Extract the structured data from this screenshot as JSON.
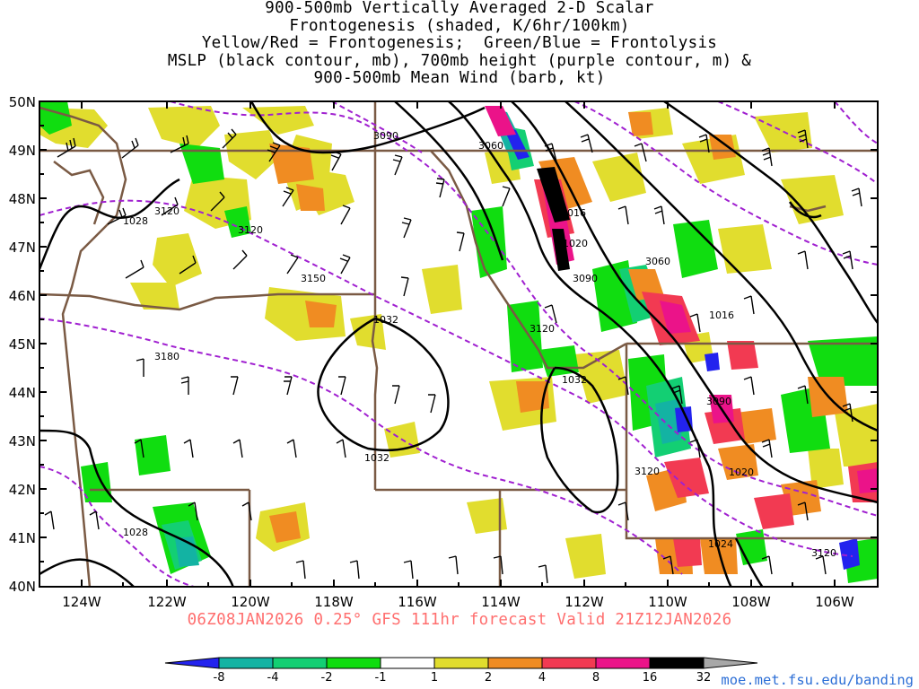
{
  "title_lines": [
    "900-500mb Vertically Averaged 2-D Scalar",
    "Frontogenesis (shaded, K/6hr/100km)",
    "Yellow/Red = Frontogenesis;  Green/Blue = Frontolysis",
    "MSLP (black contour, mb), 700mb height (purple contour, m) &",
    "900-500mb Mean Wind (barb, kt)"
  ],
  "footer": "06Z08JAN2026 0.25° GFS 111hr forecast Valid 21Z12JAN2026",
  "credit": "moe.met.fsu.edu/banding",
  "lat_labels": [
    "50N",
    "49N",
    "48N",
    "47N",
    "46N",
    "45N",
    "44N",
    "43N",
    "42N",
    "41N",
    "40N"
  ],
  "lon_labels": [
    "124W",
    "122W",
    "120W",
    "118W",
    "116W",
    "114W",
    "112W",
    "110W",
    "108W",
    "106W"
  ],
  "colorbar": {
    "labels": [
      "-8",
      "-4",
      "-2",
      "-1",
      "1",
      "2",
      "4",
      "8",
      "16",
      "32"
    ],
    "colors": [
      "#2323ee",
      "#13b3a3",
      "#13cf73",
      "#10dd10",
      "#ffffff",
      "#e1dd2e",
      "#f08c22",
      "#f23a52",
      "#eb1389",
      "#000000",
      "#a8a8a8"
    ]
  },
  "colors": {
    "msl_contour": "#000000",
    "height_contour": "#a020d0",
    "borders": "#7a5a44",
    "footer_text": "#ff6f6f",
    "credit_text": "#2d6fd6"
  },
  "mslp_labels": [
    "1028",
    "1016",
    "1020",
    "1032",
    "1032",
    "1032",
    "1016",
    "1020",
    "1024",
    "1028"
  ],
  "height_labels": [
    "3090",
    "3060",
    "3120",
    "3150",
    "3180",
    "3060",
    "3090",
    "3120",
    "3090",
    "3120",
    "3120"
  ]
}
